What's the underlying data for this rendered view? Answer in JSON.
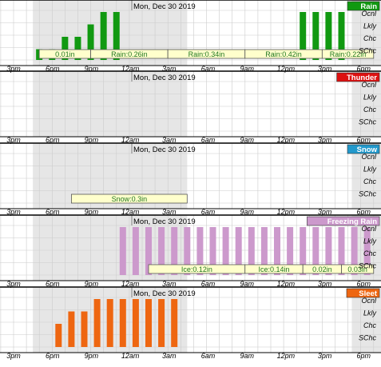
{
  "date_label": "Mon, Dec 30 2019",
  "time_ticks": [
    "3pm",
    "6pm",
    "9pm",
    "12am",
    "3am",
    "6am",
    "9am",
    "12pm",
    "3pm",
    "6pm"
  ],
  "probability_levels": [
    "Ocnl",
    "Lkly",
    "Chc",
    "SChc"
  ],
  "colors": {
    "rain": "#119911",
    "thunder": "#dd1111",
    "snow": "#2299cc",
    "freezing_rain": "#cc99cc",
    "sleet": "#ee6611",
    "shade": "#e6e6e6",
    "grid": "#cccccc",
    "amount_box_fill": "#ffffcc"
  },
  "chart_data": [
    {
      "type": "bar",
      "title": "Rain",
      "color_key": "rain",
      "x_unit": "hours from 3pm",
      "xlim": [
        0,
        27.5
      ],
      "y_levels": [
        "SChc",
        "Chc",
        "Lkly",
        "Ocnl"
      ],
      "bars": [
        {
          "x": 0,
          "level": 0
        },
        {
          "x": 1.5,
          "level": 1
        },
        {
          "x": 2.5,
          "level": 1
        },
        {
          "x": 3.5,
          "level": 2
        },
        {
          "x": 4.5,
          "level": 2
        },
        {
          "x": 5.5,
          "level": 3
        },
        {
          "x": 6.5,
          "level": 4
        },
        {
          "x": 7.5,
          "level": 4
        },
        {
          "x": 22,
          "level": 4
        },
        {
          "x": 23,
          "level": 4
        },
        {
          "x": 24,
          "level": 4
        },
        {
          "x": 25,
          "level": 4
        }
      ],
      "amounts": [
        {
          "label": "0.01in",
          "start": 1.5,
          "end": 5.5
        },
        {
          "label": "Rain:0.26in",
          "start": 5.5,
          "end": 11.5
        },
        {
          "label": "Rain:0.34in",
          "start": 11.5,
          "end": 17.5
        },
        {
          "label": "Rain:0.42in",
          "start": 17.5,
          "end": 23.5
        },
        {
          "label": "Rain:0.22in",
          "start": 23.5,
          "end": 27.5
        }
      ]
    },
    {
      "type": "bar",
      "title": "Thunder",
      "color_key": "thunder",
      "xlim": [
        0,
        27.5
      ],
      "y_levels": [
        "SChc",
        "Chc",
        "Lkly",
        "Ocnl"
      ],
      "bars": [],
      "amounts": []
    },
    {
      "type": "bar",
      "title": "Snow",
      "color_key": "snow",
      "xlim": [
        0,
        27.5
      ],
      "y_levels": [
        "SChc",
        "Chc",
        "Lkly",
        "Ocnl"
      ],
      "bars": [],
      "amounts": [
        {
          "label": "Snow:0.3in",
          "start": 4,
          "end": 13
        }
      ]
    },
    {
      "type": "bar",
      "title": "Freezing Rain",
      "color_key": "freezing_rain",
      "xlim": [
        0,
        27.5
      ],
      "y_levels": [
        "SChc",
        "Chc",
        "Lkly",
        "Ocnl"
      ],
      "bars": [
        {
          "x": 8,
          "level": 4
        },
        {
          "x": 9,
          "level": 4
        },
        {
          "x": 10,
          "level": 4
        },
        {
          "x": 11,
          "level": 4
        },
        {
          "x": 12,
          "level": 4
        },
        {
          "x": 13,
          "level": 4
        },
        {
          "x": 14,
          "level": 4
        },
        {
          "x": 15,
          "level": 4
        },
        {
          "x": 16,
          "level": 4
        },
        {
          "x": 17,
          "level": 4
        },
        {
          "x": 18,
          "level": 4
        },
        {
          "x": 19,
          "level": 4
        },
        {
          "x": 20,
          "level": 4
        },
        {
          "x": 21,
          "level": 4
        },
        {
          "x": 22,
          "level": 4
        },
        {
          "x": 23,
          "level": 4
        },
        {
          "x": 24,
          "level": 4
        },
        {
          "x": 25,
          "level": 4
        },
        {
          "x": 26,
          "level": 4
        },
        {
          "x": 27,
          "level": 4
        }
      ],
      "amounts": [
        {
          "label": "Ice:0.12in",
          "start": 10,
          "end": 17.5
        },
        {
          "label": "Ice:0.14in",
          "start": 17.5,
          "end": 22
        },
        {
          "label": "0.02in",
          "start": 22,
          "end": 25
        },
        {
          "label": "0.03in",
          "start": 25,
          "end": 27.5
        }
      ]
    },
    {
      "type": "bar",
      "title": "Sleet",
      "color_key": "sleet",
      "xlim": [
        0,
        27.5
      ],
      "y_levels": [
        "SChc",
        "Chc",
        "Lkly",
        "Ocnl"
      ],
      "bars": [
        {
          "x": 3,
          "level": 2
        },
        {
          "x": 4,
          "level": 3
        },
        {
          "x": 5,
          "level": 3
        },
        {
          "x": 6,
          "level": 4
        },
        {
          "x": 7,
          "level": 4
        },
        {
          "x": 8,
          "level": 4
        },
        {
          "x": 9,
          "level": 4
        },
        {
          "x": 10,
          "level": 4
        },
        {
          "x": 11,
          "level": 4
        },
        {
          "x": 12,
          "level": 4
        }
      ],
      "amounts": []
    }
  ]
}
